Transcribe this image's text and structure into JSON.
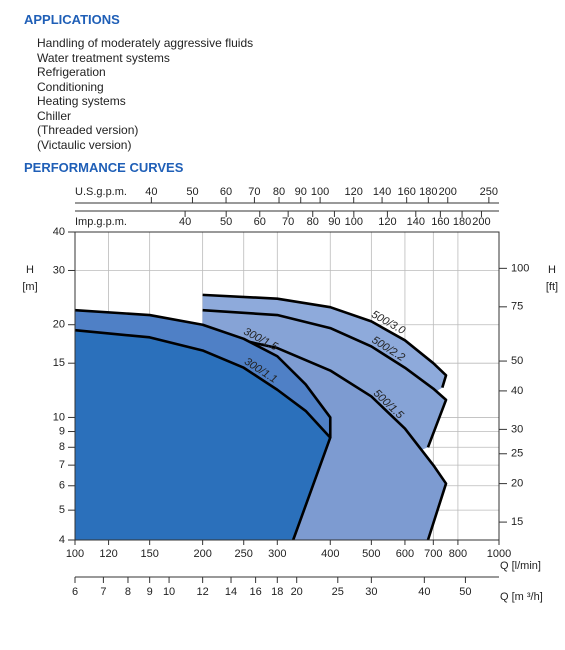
{
  "applications": {
    "title": "APPLICATIONS",
    "items": [
      "Handling of moderately aggressive fluids",
      "Water treatment systems",
      "Refrigeration",
      "Conditioning",
      "Heating systems",
      "Chiller",
      "(Threaded version)",
      "(Victaulic version)"
    ]
  },
  "performance": {
    "title": "PERFORMANCE CURVES"
  },
  "chart_data": {
    "type": "line",
    "log_x": true,
    "log_y": true,
    "grid": true,
    "xlabel": "Q [l/min]",
    "xlim": [
      100,
      1000
    ],
    "xticks": [
      100,
      120,
      150,
      200,
      250,
      300,
      400,
      500,
      600,
      700,
      800,
      1000
    ],
    "ylabel": [
      "H",
      "[m]"
    ],
    "ylim": [
      4,
      40
    ],
    "yticks": [
      4,
      5,
      6,
      7,
      8,
      9,
      10,
      15,
      20,
      30,
      40
    ],
    "y2label": [
      "H",
      "[ft]"
    ],
    "y2lim": [
      13.12,
      131.23
    ],
    "y2ticks": [
      15,
      20,
      25,
      30,
      40,
      50,
      75,
      100
    ],
    "top_axes": [
      {
        "label": "U.S.g.p.m.",
        "lim": [
          26.42,
          264.17
        ],
        "ticks": [
          40,
          50,
          60,
          70,
          80,
          90,
          100,
          120,
          140,
          160,
          180,
          200,
          250
        ]
      },
      {
        "label": "Imp.g.p.m.",
        "lim": [
          22.0,
          219.97
        ],
        "ticks": [
          40,
          50,
          60,
          70,
          80,
          90,
          100,
          120,
          140,
          160,
          180,
          200
        ]
      }
    ],
    "bottom_axis": {
      "label": "Q [m ³/h]",
      "lim": [
        6,
        60
      ],
      "ticks": [
        6,
        7,
        8,
        9,
        10,
        12,
        14,
        16,
        18,
        20,
        25,
        30,
        40,
        50
      ]
    },
    "series": [
      {
        "name": "500/3.0",
        "color": "#000000",
        "fill": "#8eaadb",
        "x": [
          200,
          300,
          400,
          500,
          600,
          700,
          750,
          735
        ],
        "values": [
          25,
          24.3,
          22.8,
          20.5,
          17.8,
          15,
          13.7,
          12.5
        ]
      },
      {
        "name": "500/2.2",
        "color": "#000000",
        "fill": "#86a3d6",
        "x": [
          200,
          300,
          400,
          500,
          600,
          700,
          750,
          680
        ],
        "values": [
          22.3,
          21.5,
          19.5,
          17,
          14.5,
          12.4,
          11.4,
          8.0
        ]
      },
      {
        "name": "500/1.5",
        "color": "#000000",
        "fill": "#7d9bd1",
        "x": [
          200,
          300,
          400,
          500,
          600,
          700,
          750,
          680
        ],
        "values": [
          19,
          16.8,
          14.2,
          11.7,
          9.2,
          7,
          6.1,
          4
        ]
      },
      {
        "name": "300/1.5",
        "color": "#000000",
        "fill": "#4f80c6",
        "x": [
          100,
          150,
          200,
          250,
          300,
          350,
          400,
          400
        ],
        "values": [
          22.3,
          21.5,
          20,
          18,
          15.8,
          12.8,
          10,
          8.6
        ]
      },
      {
        "name": "300/1.1",
        "color": "#000000",
        "fill": "#2b70bb",
        "x": [
          100,
          150,
          200,
          250,
          300,
          350,
          400,
          327
        ],
        "values": [
          19.2,
          18.2,
          16.5,
          14.5,
          12.3,
          10.5,
          8.6,
          4
        ]
      }
    ]
  }
}
